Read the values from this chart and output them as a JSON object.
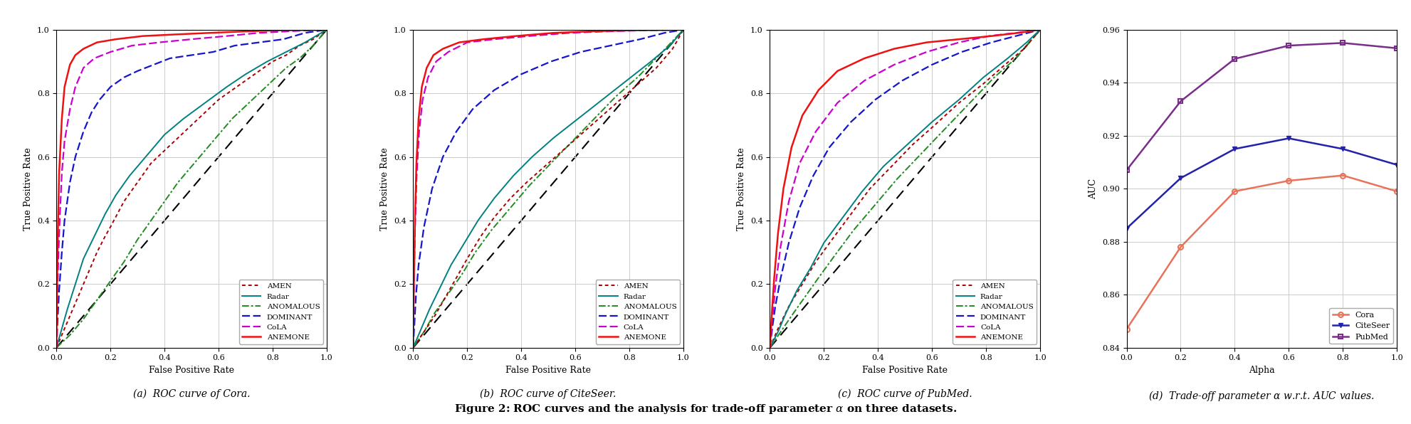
{
  "figure_title": "Figure 2: ROC curves and the analysis for trade-off parameter $\\alpha$ on three datasets.",
  "subplot_titles": [
    "(a)  ROC curve of Cora.",
    "(b)  ROC curve of CiteSeer.",
    "(c)  ROC curve of PubMed.",
    "(d)  Trade-off parameter $\\alpha$ w.r.t. AUC values."
  ],
  "methods": [
    "AMEN",
    "Radar",
    "ANOMALOUS",
    "DOMINANT",
    "CoLA",
    "ANEMONE"
  ],
  "method_colors": {
    "AMEN": "#aa0000",
    "Radar": "#008080",
    "ANOMALOUS": "#228B22",
    "DOMINANT": "#1515cc",
    "CoLA": "#cc00cc",
    "ANEMONE": "#ee1111"
  },
  "method_linestyles": {
    "AMEN": "dotted",
    "Radar": "solid",
    "ANOMALOUS": "dashdot",
    "DOMINANT": "dashed",
    "CoLA": "dashed",
    "ANEMONE": "solid"
  },
  "roc_cora": {
    "AMEN": {
      "fpr": [
        0.0,
        0.02,
        0.04,
        0.06,
        0.08,
        0.1,
        0.12,
        0.15,
        0.18,
        0.2,
        0.25,
        0.3,
        0.35,
        0.4,
        0.45,
        0.5,
        0.55,
        0.6,
        0.65,
        0.7,
        0.75,
        0.8,
        0.85,
        0.9,
        0.95,
        1.0
      ],
      "tpr": [
        0.0,
        0.04,
        0.08,
        0.12,
        0.16,
        0.2,
        0.24,
        0.3,
        0.35,
        0.38,
        0.46,
        0.52,
        0.58,
        0.62,
        0.66,
        0.7,
        0.74,
        0.78,
        0.81,
        0.84,
        0.87,
        0.9,
        0.92,
        0.95,
        0.97,
        1.0
      ]
    },
    "Radar": {
      "fpr": [
        0.0,
        0.02,
        0.04,
        0.07,
        0.1,
        0.14,
        0.18,
        0.22,
        0.27,
        0.33,
        0.4,
        0.47,
        0.55,
        0.63,
        0.7,
        0.78,
        0.85,
        0.92,
        0.96,
        1.0
      ],
      "tpr": [
        0.0,
        0.06,
        0.12,
        0.2,
        0.28,
        0.35,
        0.42,
        0.48,
        0.54,
        0.6,
        0.67,
        0.72,
        0.77,
        0.82,
        0.86,
        0.9,
        0.93,
        0.96,
        0.98,
        1.0
      ]
    },
    "ANOMALOUS": {
      "fpr": [
        0.0,
        0.05,
        0.1,
        0.15,
        0.2,
        0.25,
        0.3,
        0.35,
        0.4,
        0.45,
        0.5,
        0.55,
        0.6,
        0.65,
        0.7,
        0.75,
        0.8,
        0.85,
        0.9,
        0.95,
        1.0
      ],
      "tpr": [
        0.0,
        0.04,
        0.09,
        0.15,
        0.21,
        0.27,
        0.34,
        0.4,
        0.46,
        0.52,
        0.57,
        0.62,
        0.67,
        0.72,
        0.76,
        0.8,
        0.84,
        0.88,
        0.91,
        0.95,
        1.0
      ]
    },
    "DOMINANT": {
      "fpr": [
        0.0,
        0.005,
        0.01,
        0.02,
        0.03,
        0.05,
        0.07,
        0.1,
        0.13,
        0.16,
        0.2,
        0.25,
        0.3,
        0.36,
        0.42,
        0.5,
        0.58,
        0.66,
        0.75,
        0.84,
        0.92,
        1.0
      ],
      "tpr": [
        0.0,
        0.1,
        0.18,
        0.3,
        0.4,
        0.52,
        0.6,
        0.68,
        0.74,
        0.78,
        0.82,
        0.85,
        0.87,
        0.89,
        0.91,
        0.92,
        0.93,
        0.95,
        0.96,
        0.97,
        0.99,
        1.0
      ]
    },
    "CoLA": {
      "fpr": [
        0.0,
        0.003,
        0.007,
        0.012,
        0.02,
        0.03,
        0.05,
        0.07,
        0.1,
        0.14,
        0.2,
        0.28,
        0.38,
        0.5,
        0.63,
        0.75,
        0.86,
        0.94,
        1.0
      ],
      "tpr": [
        0.0,
        0.15,
        0.28,
        0.4,
        0.55,
        0.65,
        0.75,
        0.82,
        0.88,
        0.91,
        0.93,
        0.95,
        0.96,
        0.97,
        0.98,
        0.99,
        0.995,
        0.998,
        1.0
      ]
    },
    "ANEMONE": {
      "fpr": [
        0.0,
        0.002,
        0.005,
        0.01,
        0.02,
        0.03,
        0.05,
        0.07,
        0.1,
        0.15,
        0.22,
        0.32,
        0.44,
        0.57,
        0.71,
        0.83,
        0.93,
        1.0
      ],
      "tpr": [
        0.0,
        0.18,
        0.35,
        0.55,
        0.72,
        0.82,
        0.89,
        0.92,
        0.94,
        0.96,
        0.97,
        0.98,
        0.985,
        0.99,
        0.995,
        0.998,
        0.999,
        1.0
      ]
    }
  },
  "roc_citeseer": {
    "AMEN": {
      "fpr": [
        0.0,
        0.04,
        0.08,
        0.12,
        0.16,
        0.2,
        0.25,
        0.3,
        0.36,
        0.42,
        0.5,
        0.58,
        0.66,
        0.74,
        0.82,
        0.9,
        0.96,
        1.0
      ],
      "tpr": [
        0.0,
        0.05,
        0.1,
        0.16,
        0.22,
        0.28,
        0.35,
        0.41,
        0.47,
        0.52,
        0.58,
        0.64,
        0.7,
        0.76,
        0.82,
        0.88,
        0.94,
        1.0
      ]
    },
    "Radar": {
      "fpr": [
        0.0,
        0.03,
        0.06,
        0.1,
        0.14,
        0.19,
        0.24,
        0.3,
        0.37,
        0.44,
        0.52,
        0.61,
        0.7,
        0.79,
        0.88,
        0.95,
        1.0
      ],
      "tpr": [
        0.0,
        0.06,
        0.12,
        0.19,
        0.26,
        0.33,
        0.4,
        0.47,
        0.54,
        0.6,
        0.66,
        0.72,
        0.78,
        0.84,
        0.9,
        0.95,
        1.0
      ]
    },
    "ANOMALOUS": {
      "fpr": [
        0.0,
        0.04,
        0.08,
        0.13,
        0.18,
        0.23,
        0.29,
        0.36,
        0.43,
        0.51,
        0.59,
        0.67,
        0.75,
        0.83,
        0.91,
        1.0
      ],
      "tpr": [
        0.0,
        0.05,
        0.11,
        0.17,
        0.23,
        0.3,
        0.37,
        0.44,
        0.51,
        0.58,
        0.65,
        0.72,
        0.79,
        0.85,
        0.92,
        1.0
      ]
    },
    "DOMINANT": {
      "fpr": [
        0.0,
        0.005,
        0.01,
        0.02,
        0.04,
        0.07,
        0.11,
        0.16,
        0.22,
        0.3,
        0.4,
        0.51,
        0.62,
        0.73,
        0.84,
        0.93,
        1.0
      ],
      "tpr": [
        0.0,
        0.08,
        0.16,
        0.26,
        0.38,
        0.5,
        0.6,
        0.68,
        0.75,
        0.81,
        0.86,
        0.9,
        0.93,
        0.95,
        0.97,
        0.99,
        1.0
      ]
    },
    "CoLA": {
      "fpr": [
        0.0,
        0.003,
        0.007,
        0.013,
        0.022,
        0.035,
        0.055,
        0.085,
        0.13,
        0.2,
        0.3,
        0.43,
        0.58,
        0.73,
        0.87,
        0.96,
        1.0
      ],
      "tpr": [
        0.0,
        0.2,
        0.38,
        0.54,
        0.68,
        0.78,
        0.85,
        0.9,
        0.93,
        0.96,
        0.97,
        0.98,
        0.99,
        0.995,
        0.998,
        0.999,
        1.0
      ]
    },
    "ANEMONE": {
      "fpr": [
        0.0,
        0.003,
        0.007,
        0.012,
        0.02,
        0.032,
        0.05,
        0.075,
        0.11,
        0.17,
        0.26,
        0.38,
        0.52,
        0.67,
        0.82,
        0.94,
        1.0
      ],
      "tpr": [
        0.0,
        0.22,
        0.42,
        0.58,
        0.72,
        0.82,
        0.88,
        0.92,
        0.94,
        0.96,
        0.97,
        0.98,
        0.99,
        0.995,
        0.998,
        0.999,
        1.0
      ]
    }
  },
  "roc_pubmed": {
    "AMEN": {
      "fpr": [
        0.0,
        0.03,
        0.07,
        0.12,
        0.17,
        0.23,
        0.3,
        0.37,
        0.45,
        0.53,
        0.61,
        0.7,
        0.79,
        0.87,
        0.94,
        1.0
      ],
      "tpr": [
        0.0,
        0.06,
        0.13,
        0.2,
        0.27,
        0.34,
        0.42,
        0.5,
        0.57,
        0.64,
        0.7,
        0.77,
        0.83,
        0.89,
        0.94,
        1.0
      ]
    },
    "Radar": {
      "fpr": [
        0.0,
        0.03,
        0.06,
        0.1,
        0.15,
        0.2,
        0.27,
        0.34,
        0.42,
        0.51,
        0.6,
        0.7,
        0.79,
        0.88,
        0.95,
        1.0
      ],
      "tpr": [
        0.0,
        0.05,
        0.11,
        0.18,
        0.25,
        0.33,
        0.41,
        0.49,
        0.57,
        0.64,
        0.71,
        0.78,
        0.85,
        0.91,
        0.96,
        1.0
      ]
    },
    "ANOMALOUS": {
      "fpr": [
        0.0,
        0.04,
        0.08,
        0.13,
        0.18,
        0.24,
        0.31,
        0.39,
        0.47,
        0.56,
        0.65,
        0.74,
        0.83,
        0.91,
        1.0
      ],
      "tpr": [
        0.0,
        0.05,
        0.1,
        0.16,
        0.22,
        0.29,
        0.37,
        0.45,
        0.53,
        0.61,
        0.69,
        0.77,
        0.85,
        0.91,
        1.0
      ]
    },
    "DOMINANT": {
      "fpr": [
        0.0,
        0.01,
        0.02,
        0.04,
        0.07,
        0.11,
        0.16,
        0.22,
        0.3,
        0.39,
        0.49,
        0.6,
        0.71,
        0.82,
        0.91,
        1.0
      ],
      "tpr": [
        0.0,
        0.07,
        0.13,
        0.22,
        0.33,
        0.44,
        0.54,
        0.63,
        0.71,
        0.78,
        0.84,
        0.89,
        0.93,
        0.96,
        0.98,
        1.0
      ]
    },
    "CoLA": {
      "fpr": [
        0.0,
        0.01,
        0.02,
        0.04,
        0.07,
        0.11,
        0.17,
        0.25,
        0.35,
        0.46,
        0.58,
        0.7,
        0.81,
        0.91,
        1.0
      ],
      "tpr": [
        0.0,
        0.1,
        0.19,
        0.32,
        0.46,
        0.58,
        0.68,
        0.77,
        0.84,
        0.89,
        0.93,
        0.96,
        0.98,
        0.99,
        1.0
      ]
    },
    "ANEMONE": {
      "fpr": [
        0.0,
        0.008,
        0.016,
        0.03,
        0.05,
        0.08,
        0.12,
        0.18,
        0.25,
        0.35,
        0.46,
        0.58,
        0.7,
        0.82,
        0.92,
        1.0
      ],
      "tpr": [
        0.0,
        0.12,
        0.22,
        0.36,
        0.5,
        0.63,
        0.73,
        0.81,
        0.87,
        0.91,
        0.94,
        0.96,
        0.97,
        0.98,
        0.99,
        1.0
      ]
    }
  },
  "alpha_values": [
    0.0,
    0.2,
    0.4,
    0.6,
    0.8,
    1.0
  ],
  "auc_cora": [
    0.847,
    0.878,
    0.899,
    0.903,
    0.905,
    0.899
  ],
  "auc_citeseer": [
    0.885,
    0.904,
    0.915,
    0.919,
    0.915,
    0.909
  ],
  "auc_pubmed": [
    0.907,
    0.933,
    0.949,
    0.954,
    0.955,
    0.953
  ],
  "alpha_colors": {
    "Cora": "#E8735A",
    "CiteSeer": "#2222AA",
    "PubMed": "#7B2D8B"
  },
  "alpha_markers": {
    "Cora": "o",
    "CiteSeer": "v",
    "PubMed": "s"
  },
  "xlabel_roc": "False Positive Rate",
  "ylabel_roc": "True Positive Rate",
  "xlabel_alpha": "Alpha",
  "ylabel_alpha": "AUC",
  "diagonal_color": "#000000",
  "background_color": "#ffffff",
  "grid_color": "#cccccc"
}
